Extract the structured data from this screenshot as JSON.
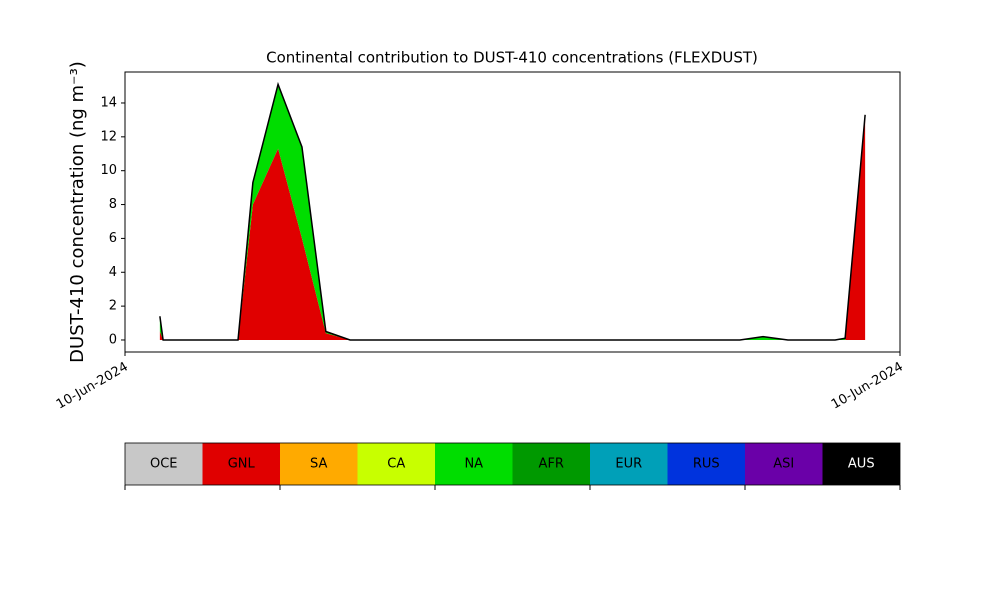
{
  "chart_data": {
    "type": "stacked_area",
    "title": "Continental contribution to DUST-410 concentrations (FLEXDUST)",
    "y_label": "DUST-410 concentration (ng m⁻³)",
    "x": [
      1.08,
      1.18,
      3.5,
      3.96,
      4.74,
      5.48,
      6.22,
      6.97,
      19.04,
      19.76,
      20.53,
      21.99,
      22.3,
      22.92
    ],
    "xlim": [
      0,
      24
    ],
    "xticks": [
      {
        "value": 0,
        "label": "10-Jun-2024"
      },
      {
        "value": 24,
        "label": "10-Jun-2024"
      }
    ],
    "ylim": [
      -0.71,
      15.83
    ],
    "yticks": [
      0,
      2,
      4,
      6,
      8,
      10,
      12,
      14
    ],
    "series": [
      {
        "name": "OCE",
        "color": "#c8c8c8",
        "values": [
          0,
          0,
          0,
          0,
          0,
          0,
          0,
          0,
          0,
          0,
          0,
          0,
          0,
          0
        ]
      },
      {
        "name": "GNL",
        "color": "#e00000",
        "values": [
          0.5,
          0,
          0,
          8,
          11.3,
          6,
          0.4,
          0,
          0,
          0,
          0,
          0,
          0,
          13.3
        ]
      },
      {
        "name": "SA",
        "color": "#ffaa00",
        "values": [
          0,
          0,
          0,
          0,
          0,
          0,
          0,
          0,
          0,
          0,
          0,
          0,
          0,
          0
        ]
      },
      {
        "name": "CA",
        "color": "#c8ff00",
        "values": [
          0,
          0,
          0,
          0,
          0,
          0,
          0,
          0,
          0,
          0,
          0,
          0,
          0,
          0
        ]
      },
      {
        "name": "NA",
        "color": "#00dd00",
        "values": [
          0.9,
          0,
          0,
          1.3,
          3.8,
          5.4,
          0.1,
          0,
          0,
          0.2,
          0,
          0,
          0.1,
          0
        ]
      },
      {
        "name": "AFR",
        "color": "#009900",
        "values": [
          0,
          0,
          0,
          0,
          0,
          0,
          0,
          0,
          0,
          0,
          0,
          0,
          0,
          0
        ]
      },
      {
        "name": "EUR",
        "color": "#00a0b8",
        "values": [
          0,
          0,
          0,
          0,
          0,
          0,
          0,
          0,
          0,
          0,
          0,
          0,
          0,
          0
        ]
      },
      {
        "name": "RUS",
        "color": "#0033dd",
        "values": [
          0,
          0,
          0,
          0,
          0,
          0,
          0,
          0,
          0,
          0,
          0,
          0,
          0,
          0
        ]
      },
      {
        "name": "ASI",
        "color": "#6a00a8",
        "values": [
          0,
          0,
          0,
          0,
          0,
          0,
          0,
          0,
          0,
          0,
          0,
          0,
          0,
          0
        ]
      },
      {
        "name": "AUS",
        "color": "#000000",
        "values": [
          0,
          0,
          0,
          0,
          0,
          0,
          0,
          0,
          0,
          0,
          0,
          0,
          0,
          0
        ]
      }
    ]
  }
}
